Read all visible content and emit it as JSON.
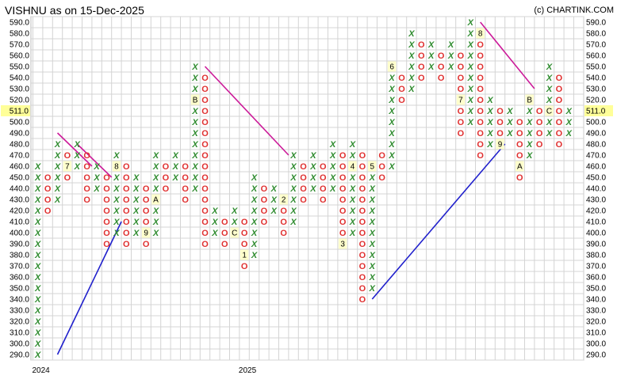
{
  "chart_data": {
    "type": "point-and-figure",
    "title": "VISHNU as on 15-Dec-2025",
    "copyright": "(c) CHARTINK.COM",
    "box_size": 10,
    "ylim": [
      290,
      590
    ],
    "y_ticks": [
      "590.0",
      "580.0",
      "570.0",
      "560.0",
      "550.0",
      "540.0",
      "530.0",
      "520.0",
      "510.0",
      "500.0",
      "490.0",
      "480.0",
      "470.0",
      "460.0",
      "450.0",
      "440.0",
      "430.0",
      "420.0",
      "410.0",
      "400.0",
      "390.0",
      "380.0",
      "370.0",
      "360.0",
      "350.0",
      "340.0",
      "330.0",
      "320.0",
      "310.0",
      "300.0",
      "290.0"
    ],
    "last_price": "511.0",
    "x_labels": [
      {
        "label": "2024",
        "col": 0
      },
      {
        "label": "2025",
        "col": 21
      }
    ],
    "columns": [
      {
        "type": "X",
        "low": 290,
        "high": 460
      },
      {
        "type": "O",
        "high": 450,
        "low": 420
      },
      {
        "type": "X",
        "low": 430,
        "high": 480
      },
      {
        "type": "O",
        "high": 470,
        "low": 450,
        "markers": [
          {
            "price": 460,
            "label": "7"
          }
        ]
      },
      {
        "type": "X",
        "low": 460,
        "high": 480
      },
      {
        "type": "O",
        "high": 470,
        "low": 430
      },
      {
        "type": "X",
        "low": 440,
        "high": 460
      },
      {
        "type": "O",
        "high": 450,
        "low": 390
      },
      {
        "type": "X",
        "low": 400,
        "high": 470,
        "markers": [
          {
            "price": 460,
            "label": "8"
          }
        ]
      },
      {
        "type": "O",
        "high": 460,
        "low": 390
      },
      {
        "type": "X",
        "low": 400,
        "high": 450
      },
      {
        "type": "O",
        "high": 440,
        "low": 390,
        "markers": [
          {
            "price": 400,
            "label": "9"
          }
        ]
      },
      {
        "type": "X",
        "low": 400,
        "high": 470,
        "markers": [
          {
            "price": 430,
            "label": "A"
          }
        ]
      },
      {
        "type": "O",
        "high": 460,
        "low": 440
      },
      {
        "type": "X",
        "low": 450,
        "high": 470
      },
      {
        "type": "O",
        "high": 460,
        "low": 430
      },
      {
        "type": "X",
        "low": 440,
        "high": 550,
        "markers": [
          {
            "price": 520,
            "label": "B"
          }
        ]
      },
      {
        "type": "O",
        "high": 540,
        "low": 390
      },
      {
        "type": "X",
        "low": 400,
        "high": 420
      },
      {
        "type": "O",
        "high": 410,
        "low": 390
      },
      {
        "type": "X",
        "low": 400,
        "high": 420,
        "markers": [
          {
            "price": 400,
            "label": "C"
          }
        ]
      },
      {
        "type": "O",
        "high": 410,
        "low": 370,
        "markers": [
          {
            "price": 380,
            "label": "1"
          }
        ]
      },
      {
        "type": "X",
        "low": 380,
        "high": 450
      },
      {
        "type": "O",
        "high": 440,
        "low": 410
      },
      {
        "type": "X",
        "low": 420,
        "high": 440
      },
      {
        "type": "O",
        "high": 430,
        "low": 400,
        "markers": [
          {
            "price": 430,
            "label": "2"
          }
        ]
      },
      {
        "type": "X",
        "low": 410,
        "high": 470
      },
      {
        "type": "O",
        "high": 460,
        "low": 430
      },
      {
        "type": "X",
        "low": 440,
        "high": 470
      },
      {
        "type": "O",
        "high": 460,
        "low": 430
      },
      {
        "type": "X",
        "low": 440,
        "high": 480
      },
      {
        "type": "O",
        "high": 470,
        "low": 390,
        "markers": [
          {
            "price": 390,
            "label": "3"
          }
        ]
      },
      {
        "type": "X",
        "low": 400,
        "high": 480,
        "markers": [
          {
            "price": 460,
            "label": "4"
          }
        ]
      },
      {
        "type": "O",
        "high": 470,
        "low": 340
      },
      {
        "type": "X",
        "low": 350,
        "high": 460,
        "markers": [
          {
            "price": 460,
            "label": "5"
          }
        ]
      },
      {
        "type": "O",
        "high": 470,
        "low": 450
      },
      {
        "type": "X",
        "low": 460,
        "high": 550,
        "markers": [
          {
            "price": 550,
            "label": "6"
          }
        ]
      },
      {
        "type": "O",
        "high": 540,
        "low": 520
      },
      {
        "type": "X",
        "low": 530,
        "high": 580
      },
      {
        "type": "O",
        "high": 570,
        "low": 540
      },
      {
        "type": "X",
        "low": 550,
        "high": 570
      },
      {
        "type": "O",
        "high": 560,
        "low": 540
      },
      {
        "type": "X",
        "low": 550,
        "high": 570
      },
      {
        "type": "O",
        "high": 560,
        "low": 490,
        "markers": [
          {
            "price": 520,
            "label": "7"
          }
        ]
      },
      {
        "type": "X",
        "low": 500,
        "high": 590
      },
      {
        "type": "O",
        "high": 580,
        "low": 470,
        "markers": [
          {
            "price": 580,
            "label": "8"
          }
        ]
      },
      {
        "type": "X",
        "low": 480,
        "high": 520
      },
      {
        "type": "O",
        "high": 510,
        "low": 480,
        "markers": [
          {
            "price": 480,
            "label": "9"
          }
        ]
      },
      {
        "type": "X",
        "low": 490,
        "high": 510
      },
      {
        "type": "O",
        "high": 500,
        "low": 450,
        "markers": [
          {
            "price": 460,
            "label": "A"
          }
        ]
      },
      {
        "type": "X",
        "low": 470,
        "high": 520,
        "markers": [
          {
            "price": 520,
            "label": "B"
          }
        ]
      },
      {
        "type": "O",
        "high": 510,
        "low": 480
      },
      {
        "type": "X",
        "low": 490,
        "high": 550,
        "markers": [
          {
            "price": 510,
            "label": "C"
          }
        ]
      },
      {
        "type": "O",
        "high": 540,
        "low": 480
      },
      {
        "type": "X",
        "low": 490,
        "high": 510
      }
    ],
    "trendlines": [
      {
        "color": "#2020cc",
        "from": {
          "col": 2,
          "price": 290
        },
        "to": {
          "col": 8.5,
          "price": 410
        }
      },
      {
        "color": "#2020cc",
        "from": {
          "col": 34,
          "price": 340
        },
        "to": {
          "col": 47.5,
          "price": 480
        }
      },
      {
        "color": "#cc1a99",
        "from": {
          "col": 2,
          "price": 490
        },
        "to": {
          "col": 5.5,
          "price": 460
        }
      },
      {
        "color": "#cc1a99",
        "from": {
          "col": 4,
          "price": 480
        },
        "to": {
          "col": 7.5,
          "price": 450
        }
      },
      {
        "color": "#cc1a99",
        "from": {
          "col": 17,
          "price": 550
        },
        "to": {
          "col": 25.5,
          "price": 470
        }
      },
      {
        "color": "#cc1a99",
        "from": {
          "col": 45,
          "price": 590
        },
        "to": {
          "col": 50.5,
          "price": 530
        }
      }
    ],
    "colors": {
      "x_mark": "#2e8b2e",
      "o_mark": "#e03030",
      "grid": "#d4d4d4",
      "price_box": "#ffff99",
      "month_box": "#ffffcc"
    }
  }
}
